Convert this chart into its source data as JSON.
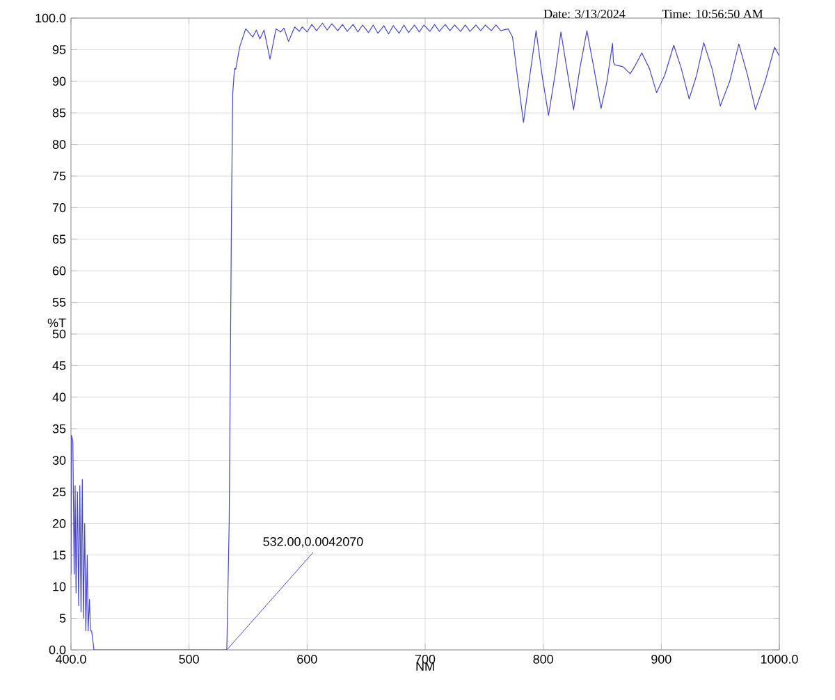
{
  "chart_data": {
    "type": "line",
    "xlabel": "NM",
    "ylabel": "%T",
    "annotations": [
      {
        "text": "532.00,0.0042070",
        "x": 532,
        "y": 0.004207
      },
      "Date: 3/13/2024",
      "Time: 10:56:50 AM"
    ],
    "x": [
      400,
      400.4,
      401.6,
      402.7,
      403.5,
      404.3,
      405.5,
      406.5,
      407.5,
      408.5,
      409.6,
      410.5,
      411.6,
      412.6,
      413.8,
      414.5,
      415.7,
      416.5,
      417.5,
      419.5,
      532,
      534,
      536,
      537,
      538.5,
      539.5,
      543,
      548,
      554,
      557,
      560,
      563.5,
      568.6,
      573.7,
      577.6,
      580.4,
      584.3,
      589.5,
      593.4,
      596,
      600,
      604,
      608,
      613,
      617,
      621,
      626,
      630,
      634,
      639,
      643,
      647,
      652,
      656,
      660,
      665,
      669,
      673,
      678,
      682,
      686,
      691,
      695,
      699,
      704,
      708,
      712,
      717,
      721,
      725,
      730,
      734,
      738,
      743,
      747,
      751,
      756,
      760,
      764,
      770.3,
      774,
      778,
      783.3,
      788,
      794,
      799,
      804.5,
      810,
      815,
      820,
      825.7,
      831,
      837,
      843,
      849,
      854,
      858.7,
      859.5,
      860.7,
      867.5,
      873.7,
      878,
      883.5,
      890,
      896,
      903,
      910.6,
      917,
      923.6,
      930,
      936,
      943,
      950,
      958,
      965.7,
      973,
      979.8,
      988,
      996,
      1000
    ],
    "series": [
      {
        "color": "#4646c8",
        "values": [
          12,
          34,
          33,
          12,
          26,
          9,
          25,
          7,
          26,
          6,
          27,
          5,
          20,
          3,
          15,
          3,
          8,
          3,
          3,
          0,
          0,
          20,
          70,
          88,
          92,
          91.9,
          95.5,
          98.3,
          97,
          98.1,
          96.7,
          98.1,
          93.5,
          98.3,
          97.8,
          98.4,
          96.3,
          98.6,
          97.9,
          98.6,
          97.8,
          99,
          98,
          99.2,
          98.1,
          99.1,
          98,
          99,
          97.9,
          99,
          97.8,
          98.9,
          97.7,
          98.9,
          97.6,
          98.8,
          97.5,
          98.8,
          97.6,
          98.9,
          97.7,
          98.9,
          97.8,
          98.9,
          97.9,
          99,
          97.9,
          99,
          98,
          98.9,
          97.9,
          98.9,
          97.9,
          98.9,
          98,
          98.9,
          98,
          98.9,
          98,
          98.3,
          97,
          91,
          83.5,
          90,
          98,
          91,
          84.6,
          91,
          97.8,
          92,
          85.5,
          92,
          98,
          92,
          85.7,
          90,
          96,
          93,
          92.6,
          92.3,
          91.2,
          92.5,
          94.5,
          92,
          88.2,
          91,
          95.7,
          92,
          87.2,
          91,
          96.1,
          92,
          86.1,
          90,
          95.9,
          91,
          85.5,
          90,
          95.4,
          94
        ]
      }
    ],
    "xlim": [
      400,
      1000
    ],
    "ylim": [
      0,
      100
    ],
    "xticks": [
      {
        "value": 400,
        "label": "400.0"
      },
      500,
      600,
      700,
      800,
      900,
      {
        "value": 1000,
        "label": "1000.0"
      }
    ],
    "yticks": [
      {
        "value": 0,
        "label": "0.0"
      },
      5,
      10,
      15,
      20,
      25,
      30,
      35,
      40,
      45,
      50,
      55,
      60,
      65,
      70,
      75,
      80,
      85,
      90,
      95,
      {
        "value": 100,
        "label": "100.0"
      }
    ],
    "grid": true,
    "marker": "none",
    "line_style": "solid"
  }
}
